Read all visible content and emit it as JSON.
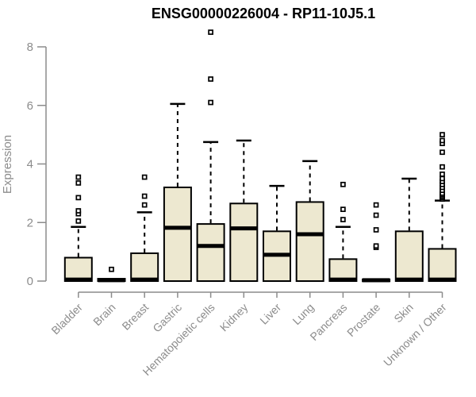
{
  "header": {
    "title": "ENSG00000226004 - RP11-10J5.1"
  },
  "chart_data": {
    "type": "boxplot",
    "title": "ENSG00000226004 - RP11-10J5.1",
    "xlabel": "",
    "ylabel": "Expression",
    "ylim": [
      0,
      8
    ],
    "yticks": [
      0,
      2,
      4,
      6,
      8
    ],
    "grid": false,
    "legend": false,
    "categories": [
      "Bladder",
      "Brain",
      "Breast",
      "Gastric",
      "Hematopoietic cells",
      "Kidney",
      "Liver",
      "Lung",
      "Pancreas",
      "Prostate",
      "Skin",
      "Unknown / Other"
    ],
    "boxes": [
      {
        "category": "Bladder",
        "whisker_low": 0,
        "q1": 0,
        "median": 0.05,
        "q3": 0.8,
        "whisker_high": 1.85,
        "outliers": [
          2.05,
          2.3,
          2.4,
          2.85,
          3.35,
          3.55
        ]
      },
      {
        "category": "Brain",
        "whisker_low": 0,
        "q1": 0,
        "median": 0.03,
        "q3": 0.08,
        "whisker_high": 0.08,
        "outliers": [
          0.4
        ]
      },
      {
        "category": "Breast",
        "whisker_low": 0,
        "q1": 0,
        "median": 0.05,
        "q3": 0.95,
        "whisker_high": 2.35,
        "outliers": [
          2.6,
          2.9,
          3.55
        ]
      },
      {
        "category": "Gastric",
        "whisker_low": 0,
        "q1": 0,
        "median": 1.82,
        "q3": 3.2,
        "whisker_high": 6.05,
        "outliers": []
      },
      {
        "category": "Hematopoietic cells",
        "whisker_low": 0,
        "q1": 0,
        "median": 1.2,
        "q3": 1.95,
        "whisker_high": 4.75,
        "outliers": [
          6.1,
          6.9,
          8.5
        ]
      },
      {
        "category": "Kidney",
        "whisker_low": 0,
        "q1": 0,
        "median": 1.8,
        "q3": 2.65,
        "whisker_high": 4.8,
        "outliers": []
      },
      {
        "category": "Liver",
        "whisker_low": 0,
        "q1": 0,
        "median": 0.9,
        "q3": 1.7,
        "whisker_high": 3.25,
        "outliers": []
      },
      {
        "category": "Lung",
        "whisker_low": 0,
        "q1": 0,
        "median": 1.6,
        "q3": 2.7,
        "whisker_high": 4.1,
        "outliers": []
      },
      {
        "category": "Pancreas",
        "whisker_low": 0,
        "q1": 0,
        "median": 0.05,
        "q3": 0.75,
        "whisker_high": 1.85,
        "outliers": [
          2.1,
          2.45,
          3.3
        ]
      },
      {
        "category": "Prostate",
        "whisker_low": 0,
        "q1": 0,
        "median": 0.03,
        "q3": 0.06,
        "whisker_high": 0.06,
        "outliers": [
          1.15,
          1.2,
          1.75,
          2.25,
          2.6
        ]
      },
      {
        "category": "Skin",
        "whisker_low": 0,
        "q1": 0,
        "median": 0.05,
        "q3": 1.7,
        "whisker_high": 3.5,
        "outliers": []
      },
      {
        "category": "Unknown / Other",
        "whisker_low": 0,
        "q1": 0,
        "median": 0.05,
        "q3": 1.1,
        "whisker_high": 2.75,
        "outliers": [
          2.8,
          2.85,
          2.9,
          2.95,
          3.0,
          3.1,
          3.2,
          3.3,
          3.4,
          3.5,
          3.65,
          3.9,
          4.4,
          4.7,
          4.8,
          5.0
        ]
      }
    ],
    "colors": {
      "box_fill": "#EDE8D0",
      "box_border": "#000000",
      "median": "#000000",
      "whisker": "#000000",
      "outlier": "#000000",
      "axis": "#8C8C8C",
      "tick_label": "#8C8C8C",
      "title": "#000000",
      "background": "#FFFFFF"
    }
  }
}
